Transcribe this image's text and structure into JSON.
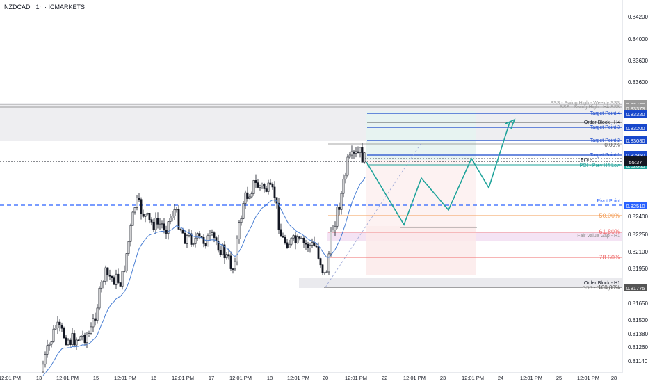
{
  "header": {
    "symbol_line": "NZDCAD · 1h · ICMARKETS"
  },
  "colors": {
    "up": "#ffffff",
    "down": "#131722",
    "ema": "#4a7fd4",
    "blue_line": "#1848cc",
    "pivot": "#2962ff",
    "teal": "#1ea39a",
    "orange": "#f39c55",
    "red": "#ef6b6b",
    "gray_zone": "#e8e8ec",
    "pink_zone": "#f3e0f3",
    "green_zone": "#e6f3f1",
    "red_zone": "#fbe9e9"
  },
  "chart_data": {
    "type": "candlestick",
    "title": "NZDCAD · 1h · ICMARKETS",
    "ylim": [
      0.84,
      0.844
    ],
    "y_ticks": [
      "0.84200",
      "0.84000",
      "0.83600",
      "0.83320",
      "0.83200",
      "0.83080",
      "0.82950",
      "0.82510",
      "0.82400",
      "0.82250",
      "0.82100",
      "0.81950",
      "0.81775",
      "0.81650",
      "0.81500",
      "0.81380",
      "0.81260",
      "0.81140"
    ],
    "x_ticks": [
      "12:01 PM",
      "13",
      "12:01 PM",
      "15",
      "12:01 PM",
      "16",
      "12:01 PM",
      "17",
      "12:01 PM",
      "18",
      "12:01 PM",
      "20",
      "12:01 PM",
      "22",
      "12:01 PM",
      "23",
      "12:01 PM",
      "24",
      "12:01 PM",
      "25",
      "12:01 PM",
      "28"
    ],
    "levels": [
      {
        "name": "SSS - Swing High - Weekly SSS",
        "value": "0.83426"
      },
      {
        "name": "SSS - Swing High - H4 SSS",
        "value": "0.83373"
      },
      {
        "name": "Target Point 4",
        "value": "0.83320"
      },
      {
        "name": "Order Block - H4",
        "value": ""
      },
      {
        "name": "Target Point 3",
        "value": "0.83200"
      },
      {
        "name": "Target Point 2",
        "value": "0.83080"
      },
      {
        "name": "0.00%",
        "value": ""
      },
      {
        "name": "Target Point 1",
        "value": "0.82950"
      },
      {
        "name": "POI - Prev H4 Low",
        "value": "0.82885"
      },
      {
        "name": "Pivot Point",
        "value": "0.82510"
      },
      {
        "name": "50.00%",
        "value": ""
      },
      {
        "name": "61.80%",
        "value": ""
      },
      {
        "name": "Fair Value Gap - H1",
        "value": ""
      },
      {
        "name": "78.60%",
        "value": ""
      },
      {
        "name": "Order Block - H1",
        "value": ""
      },
      {
        "name": "SSS - Swing Low",
        "value": ""
      },
      {
        "name": "100.00%",
        "value": ""
      }
    ],
    "current_price": "0.82905",
    "countdown": "55:37",
    "poi_label": "POI -"
  }
}
